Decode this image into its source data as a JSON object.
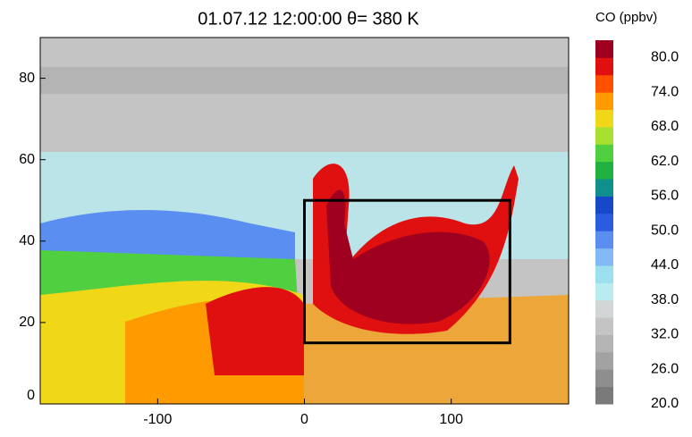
{
  "chart_data": {
    "type": "map",
    "title": "01.07.12 12:00:00  θ= 380 K",
    "xlim": [
      -180,
      180
    ],
    "ylim": [
      0,
      90
    ],
    "xticks": [
      -100,
      0,
      100
    ],
    "yticks": [
      0,
      20,
      40,
      60,
      80
    ],
    "box": {
      "x": [
        0,
        140
      ],
      "y": [
        15,
        50
      ]
    },
    "colorbar": {
      "title": "CO (ppbv)",
      "clim": [
        20,
        83
      ],
      "ticks": [
        {
          "value": 20,
          "label": "20.0"
        },
        {
          "value": 26,
          "label": "26.0"
        },
        {
          "value": 32,
          "label": "32.0"
        },
        {
          "value": 38,
          "label": "38.0"
        },
        {
          "value": 44,
          "label": "44.0"
        },
        {
          "value": 50,
          "label": "50.0"
        },
        {
          "value": 56,
          "label": "56.0"
        },
        {
          "value": 62,
          "label": "62.0"
        },
        {
          "value": 68,
          "label": "68.0"
        },
        {
          "value": 74,
          "label": "74.0"
        },
        {
          "value": 80,
          "label": "80.0"
        }
      ],
      "colors": [
        "#7a7a7a",
        "#8e8e8e",
        "#a2a2a2",
        "#b4b4b4",
        "#c4c4c4",
        "#d2d6d6",
        "#b8ecf0",
        "#9ce0f0",
        "#82b8f4",
        "#5a8ef0",
        "#2a5ce0",
        "#1648c8",
        "#10908c",
        "#20b040",
        "#50d040",
        "#a8e030",
        "#f0d818",
        "#ff9a00",
        "#ff5000",
        "#e01010",
        "#a00020"
      ]
    }
  }
}
